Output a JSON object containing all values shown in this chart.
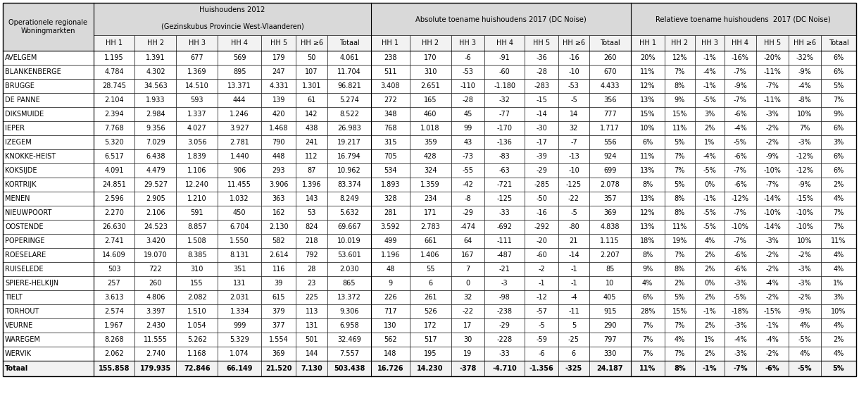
{
  "title_col1": "Operationele regionale\nWoningmarkten",
  "title_group1_line1": "Huishoudens 2012",
  "title_group1_line2": "(Gezinskubus Provincie West-Vlaanderen)",
  "title_group2": "Absolute toename huishoudens 2017 (DC Noise)",
  "title_group3": "Relatieve toename huishoudens  2017 (DC Noise)",
  "subheaders": [
    "HH 1",
    "HH 2",
    "HH 3",
    "HH 4",
    "HH 5",
    "HH ≥6",
    "Totaal"
  ],
  "rows": [
    [
      "AVELGEM",
      "1.195",
      "1.391",
      "677",
      "569",
      "179",
      "50",
      "4.061",
      "238",
      "170",
      "-6",
      "-91",
      "-36",
      "-16",
      "260",
      "20%",
      "12%",
      "-1%",
      "-16%",
      "-20%",
      "-32%",
      "6%"
    ],
    [
      "BLANKENBERGE",
      "4.784",
      "4.302",
      "1.369",
      "895",
      "247",
      "107",
      "11.704",
      "511",
      "310",
      "-53",
      "-60",
      "-28",
      "-10",
      "670",
      "11%",
      "7%",
      "-4%",
      "-7%",
      "-11%",
      "-9%",
      "6%"
    ],
    [
      "BRUGGE",
      "28.745",
      "34.563",
      "14.510",
      "13.371",
      "4.331",
      "1.301",
      "96.821",
      "3.408",
      "2.651",
      "-110",
      "-1.180",
      "-283",
      "-53",
      "4.433",
      "12%",
      "8%",
      "-1%",
      "-9%",
      "-7%",
      "-4%",
      "5%"
    ],
    [
      "DE PANNE",
      "2.104",
      "1.933",
      "593",
      "444",
      "139",
      "61",
      "5.274",
      "272",
      "165",
      "-28",
      "-32",
      "-15",
      "-5",
      "356",
      "13%",
      "9%",
      "-5%",
      "-7%",
      "-11%",
      "-8%",
      "7%"
    ],
    [
      "DIKSMUIDE",
      "2.394",
      "2.984",
      "1.337",
      "1.246",
      "420",
      "142",
      "8.522",
      "348",
      "460",
      "45",
      "-77",
      "-14",
      "14",
      "777",
      "15%",
      "15%",
      "3%",
      "-6%",
      "-3%",
      "10%",
      "9%"
    ],
    [
      "IEPER",
      "7.768",
      "9.356",
      "4.027",
      "3.927",
      "1.468",
      "438",
      "26.983",
      "768",
      "1.018",
      "99",
      "-170",
      "-30",
      "32",
      "1.717",
      "10%",
      "11%",
      "2%",
      "-4%",
      "-2%",
      "7%",
      "6%"
    ],
    [
      "IZEGEM",
      "5.320",
      "7.029",
      "3.056",
      "2.781",
      "790",
      "241",
      "19.217",
      "315",
      "359",
      "43",
      "-136",
      "-17",
      "-7",
      "556",
      "6%",
      "5%",
      "1%",
      "-5%",
      "-2%",
      "-3%",
      "3%"
    ],
    [
      "KNOKKE-HEIST",
      "6.517",
      "6.438",
      "1.839",
      "1.440",
      "448",
      "112",
      "16.794",
      "705",
      "428",
      "-73",
      "-83",
      "-39",
      "-13",
      "924",
      "11%",
      "7%",
      "-4%",
      "-6%",
      "-9%",
      "-12%",
      "6%"
    ],
    [
      "KOKSIJDE",
      "4.091",
      "4.479",
      "1.106",
      "906",
      "293",
      "87",
      "10.962",
      "534",
      "324",
      "-55",
      "-63",
      "-29",
      "-10",
      "699",
      "13%",
      "7%",
      "-5%",
      "-7%",
      "-10%",
      "-12%",
      "6%"
    ],
    [
      "KORTRIJK",
      "24.851",
      "29.527",
      "12.240",
      "11.455",
      "3.906",
      "1.396",
      "83.374",
      "1.893",
      "1.359",
      "-42",
      "-721",
      "-285",
      "-125",
      "2.078",
      "8%",
      "5%",
      "0%",
      "-6%",
      "-7%",
      "-9%",
      "2%"
    ],
    [
      "MENEN",
      "2.596",
      "2.905",
      "1.210",
      "1.032",
      "363",
      "143",
      "8.249",
      "328",
      "234",
      "-8",
      "-125",
      "-50",
      "-22",
      "357",
      "13%",
      "8%",
      "-1%",
      "-12%",
      "-14%",
      "-15%",
      "4%"
    ],
    [
      "NIEUWPOORT",
      "2.270",
      "2.106",
      "591",
      "450",
      "162",
      "53",
      "5.632",
      "281",
      "171",
      "-29",
      "-33",
      "-16",
      "-5",
      "369",
      "12%",
      "8%",
      "-5%",
      "-7%",
      "-10%",
      "-10%",
      "7%"
    ],
    [
      "OOSTENDE",
      "26.630",
      "24.523",
      "8.857",
      "6.704",
      "2.130",
      "824",
      "69.667",
      "3.592",
      "2.783",
      "-474",
      "-692",
      "-292",
      "-80",
      "4.838",
      "13%",
      "11%",
      "-5%",
      "-10%",
      "-14%",
      "-10%",
      "7%"
    ],
    [
      "POPERINGE",
      "2.741",
      "3.420",
      "1.508",
      "1.550",
      "582",
      "218",
      "10.019",
      "499",
      "661",
      "64",
      "-111",
      "-20",
      "21",
      "1.115",
      "18%",
      "19%",
      "4%",
      "-7%",
      "-3%",
      "10%",
      "11%"
    ],
    [
      "ROESELARE",
      "14.609",
      "19.070",
      "8.385",
      "8.131",
      "2.614",
      "792",
      "53.601",
      "1.196",
      "1.406",
      "167",
      "-487",
      "-60",
      "-14",
      "2.207",
      "8%",
      "7%",
      "2%",
      "-6%",
      "-2%",
      "-2%",
      "4%"
    ],
    [
      "RUISELEDE",
      "503",
      "722",
      "310",
      "351",
      "116",
      "28",
      "2.030",
      "48",
      "55",
      "7",
      "-21",
      "-2",
      "-1",
      "85",
      "9%",
      "8%",
      "2%",
      "-6%",
      "-2%",
      "-3%",
      "4%"
    ],
    [
      "SPIERE-HELKIJN",
      "257",
      "260",
      "155",
      "131",
      "39",
      "23",
      "865",
      "9",
      "6",
      "0",
      "-3",
      "-1",
      "-1",
      "10",
      "4%",
      "2%",
      "0%",
      "-3%",
      "-4%",
      "-3%",
      "1%"
    ],
    [
      "TIELT",
      "3.613",
      "4.806",
      "2.082",
      "2.031",
      "615",
      "225",
      "13.372",
      "226",
      "261",
      "32",
      "-98",
      "-12",
      "-4",
      "405",
      "6%",
      "5%",
      "2%",
      "-5%",
      "-2%",
      "-2%",
      "3%"
    ],
    [
      "TORHOUT",
      "2.574",
      "3.397",
      "1.510",
      "1.334",
      "379",
      "113",
      "9.306",
      "717",
      "526",
      "-22",
      "-238",
      "-57",
      "-11",
      "915",
      "28%",
      "15%",
      "-1%",
      "-18%",
      "-15%",
      "-9%",
      "10%"
    ],
    [
      "VEURNE",
      "1.967",
      "2.430",
      "1.054",
      "999",
      "377",
      "131",
      "6.958",
      "130",
      "172",
      "17",
      "-29",
      "-5",
      "5",
      "290",
      "7%",
      "7%",
      "2%",
      "-3%",
      "-1%",
      "4%",
      "4%"
    ],
    [
      "WAREGEM",
      "8.268",
      "11.555",
      "5.262",
      "5.329",
      "1.554",
      "501",
      "32.469",
      "562",
      "517",
      "30",
      "-228",
      "-59",
      "-25",
      "797",
      "7%",
      "4%",
      "1%",
      "-4%",
      "-4%",
      "-5%",
      "2%"
    ],
    [
      "WERVIK",
      "2.062",
      "2.740",
      "1.168",
      "1.074",
      "369",
      "144",
      "7.557",
      "148",
      "195",
      "19",
      "-33",
      "-6",
      "6",
      "330",
      "7%",
      "7%",
      "2%",
      "-3%",
      "-2%",
      "4%",
      "4%"
    ]
  ],
  "totaal": [
    "Totaal",
    "155.858",
    "179.935",
    "72.846",
    "66.149",
    "21.520",
    "7.130",
    "503.438",
    "16.726",
    "14.230",
    "-378",
    "-4.710",
    "-1.356",
    "-325",
    "24.187",
    "11%",
    "8%",
    "-1%",
    "-7%",
    "-6%",
    "-5%",
    "5%"
  ],
  "bg_header": "#d9d9d9",
  "bg_subheader": "#f2f2f2",
  "bg_white": "#ffffff",
  "bg_total": "#f2f2f2",
  "border_color": "#000000",
  "font_size": 7.0
}
